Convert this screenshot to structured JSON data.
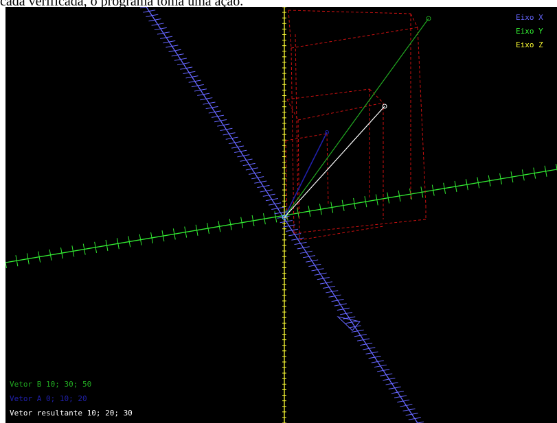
{
  "document": {
    "caption_text": "cada verificada, o programa toma uma ação."
  },
  "legend": {
    "x_label": "Eixo X",
    "y_label": "Eixo Y",
    "z_label": "Eixo Z"
  },
  "info": {
    "vector_b": "Vetor B 10; 30; 50",
    "vector_a": "Vetor A 0; 10; 20",
    "vector_result": "Vetor resultante 10; 20; 30"
  },
  "colors": {
    "background": "#000000",
    "x_axis": "#6666ff",
    "y_axis": "#33ee33",
    "z_axis": "#ffff33",
    "vector_a": "#2020aa",
    "vector_b": "#22aa22",
    "vector_result": "#ffffff",
    "box": "#cc1111"
  }
}
